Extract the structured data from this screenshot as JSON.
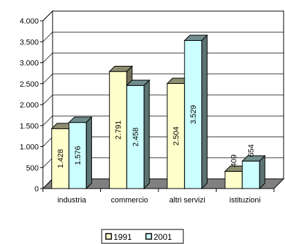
{
  "chart_data": {
    "type": "bar",
    "categories": [
      "industria",
      "commercio",
      "altri servizi",
      "istituzioni"
    ],
    "series": [
      {
        "name": "1991",
        "values": [
          1428,
          2791,
          2504,
          409
        ],
        "labels": [
          "1.428",
          "2.791",
          "2.504",
          "409"
        ],
        "color": "#FFFFCC"
      },
      {
        "name": "2001",
        "values": [
          1576,
          2458,
          3529,
          654
        ],
        "labels": [
          "1.576",
          "2.458",
          "3.529",
          "654"
        ],
        "color": "#CCFFFF"
      }
    ],
    "ylim": [
      0,
      4000
    ],
    "yticks": [
      0,
      500,
      1000,
      1500,
      2000,
      2500,
      3000,
      3500,
      4000
    ],
    "ytick_labels": [
      "0",
      "500",
      "1.000",
      "1.500",
      "2.000",
      "2.500",
      "3.000",
      "3.500",
      "4.000"
    ],
    "grid": true,
    "legend_position": "bottom",
    "title": "",
    "xlabel": "",
    "ylabel": "",
    "colors": {
      "floor": "#808080",
      "wall": "#FFFFFF",
      "grid": "#000000",
      "bar_outline": "#000000"
    }
  }
}
